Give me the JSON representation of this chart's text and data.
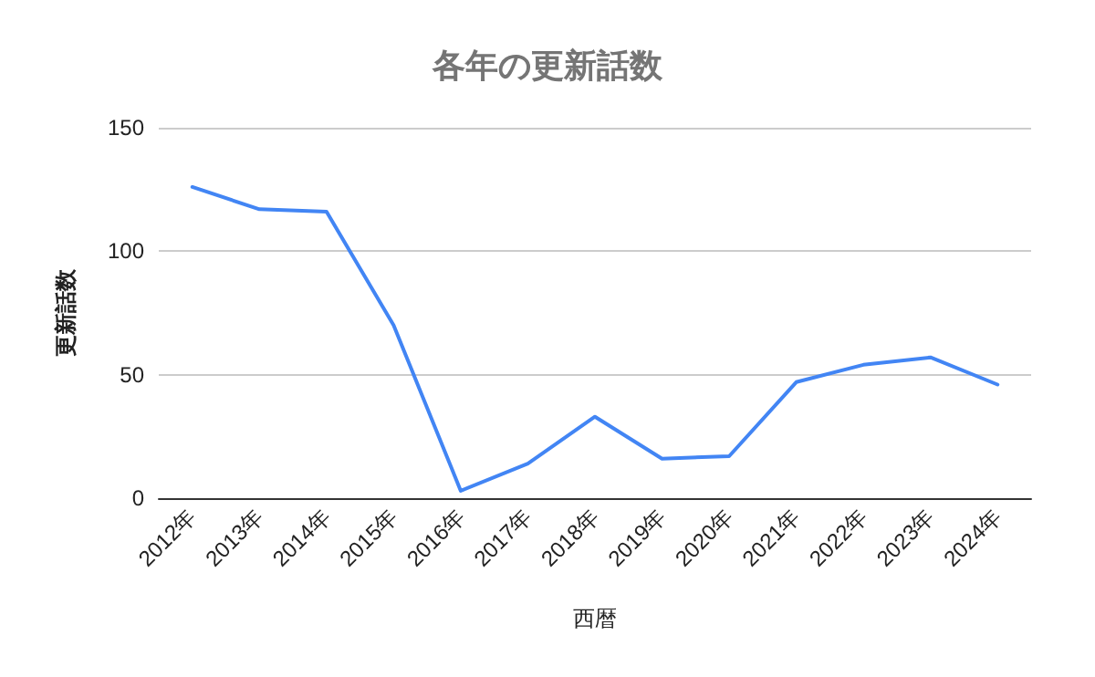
{
  "chart_data": {
    "type": "line",
    "title": "各年の更新話数",
    "xlabel": "西暦",
    "ylabel": "更新話数",
    "categories": [
      "2012年",
      "2013年",
      "2014年",
      "2015年",
      "2016年",
      "2017年",
      "2018年",
      "2019年",
      "2020年",
      "2021年",
      "2022年",
      "2023年",
      "2024年"
    ],
    "series": [
      {
        "color": "#4285f4",
        "values": [
          126,
          117,
          116,
          70,
          3,
          14,
          33,
          16,
          17,
          47,
          54,
          57,
          46
        ]
      }
    ],
    "ylim": [
      0,
      150
    ],
    "yticks": [
      0,
      50,
      100,
      150
    ],
    "grid": "y",
    "marker": "none",
    "line_style": "solid"
  }
}
